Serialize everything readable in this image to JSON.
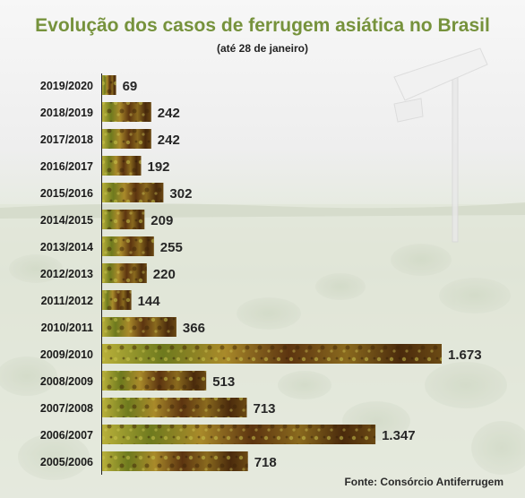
{
  "title": "Evolução dos casos de ferrugem asiática no Brasil",
  "subtitle": "(até 28 de janeiro)",
  "source": "Fonte: Consórcio Antiferrugem",
  "colors": {
    "title": "#76923c",
    "bar_dark": "#5c3410",
    "bar_mid": "#8a6a1e",
    "bar_light": "#b9b03a"
  },
  "chart_data": {
    "type": "bar",
    "orientation": "horizontal",
    "title": "Evolução dos casos de ferrugem asiática no Brasil",
    "subtitle": "(até 28 de janeiro)",
    "categories": [
      "2019/2020",
      "2018/2019",
      "2017/2018",
      "2016/2017",
      "2015/2016",
      "2014/2015",
      "2013/2014",
      "2012/2013",
      "2011/2012",
      "2010/2011",
      "2009/2010",
      "2008/2009",
      "2007/2008",
      "2006/2007",
      "2005/2006"
    ],
    "values": [
      69,
      242,
      242,
      192,
      302,
      209,
      255,
      220,
      144,
      366,
      1673,
      513,
      713,
      1347,
      718
    ],
    "value_labels": [
      "69",
      "242",
      "242",
      "192",
      "302",
      "209",
      "255",
      "220",
      "144",
      "366",
      "1.673",
      "513",
      "713",
      "1.347",
      "718"
    ],
    "xlim": [
      0,
      1673
    ],
    "grid": false,
    "legend": "none"
  }
}
